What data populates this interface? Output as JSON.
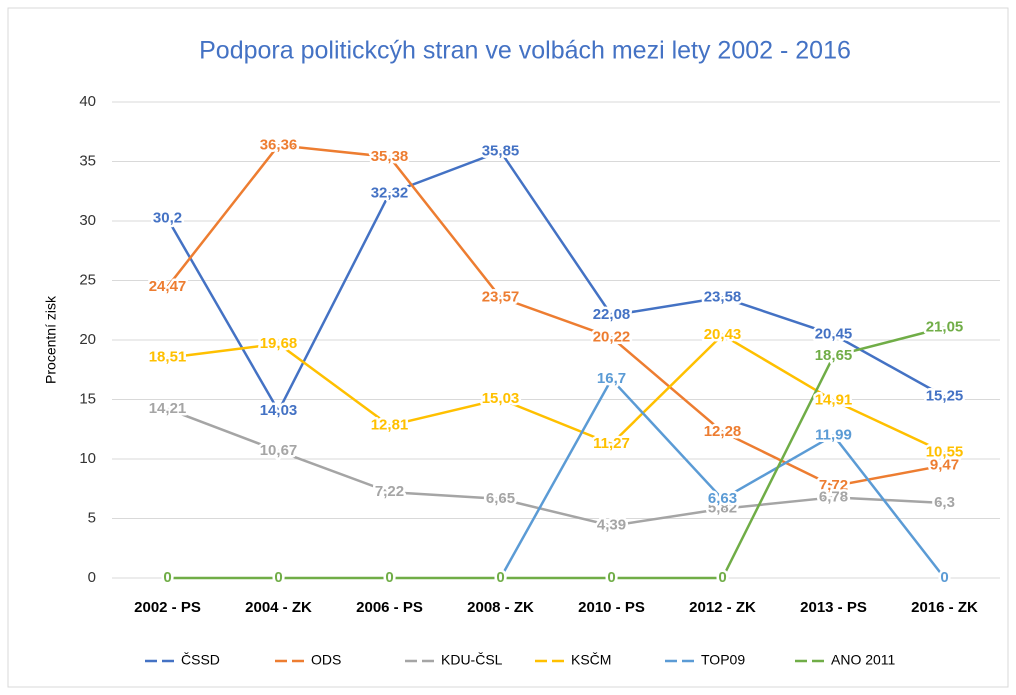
{
  "chart_data": {
    "type": "line",
    "title": "Podpora politickcýh stran ve volbách mezi lety 2002 - 2016",
    "y_label": "Procentní zisk",
    "categories": [
      "2002 - PS",
      "2004 - ZK",
      "2006 - PS",
      "2008 - ZK",
      "2010 - PS",
      "2012 - ZK",
      "2013 - PS",
      "2016 - ZK"
    ],
    "series": [
      {
        "name": "ČSSD",
        "color": "#4472c4",
        "values": [
          30.2,
          14.03,
          32.32,
          35.85,
          22.08,
          23.58,
          20.45,
          15.25
        ],
        "value_labels": [
          "30,2",
          "14,03",
          "32,32",
          "35,85",
          "22,08",
          "23,58",
          "20,45",
          "15,25"
        ]
      },
      {
        "name": "ODS",
        "color": "#ed7d31",
        "values": [
          24.47,
          36.36,
          35.38,
          23.57,
          20.22,
          12.28,
          7.72,
          9.47
        ],
        "value_labels": [
          "24,47",
          "36,36",
          "35,38",
          "23,57",
          "20,22",
          "12,28",
          "7,72",
          "9,47"
        ]
      },
      {
        "name": "KDU-ČSL",
        "color": "#a5a5a5",
        "values": [
          14.21,
          10.67,
          7.22,
          6.65,
          4.39,
          5.82,
          6.78,
          6.3
        ],
        "value_labels": [
          "14,21",
          "10,67",
          "7,22",
          "6,65",
          "4,39",
          "5,82",
          "6,78",
          "6,3"
        ]
      },
      {
        "name": "KSČM",
        "color": "#ffc000",
        "values": [
          18.51,
          19.68,
          12.81,
          15.03,
          11.27,
          20.43,
          14.91,
          10.55
        ],
        "value_labels": [
          "18,51",
          "19,68",
          "12,81",
          "15,03",
          "11,27",
          "20,43",
          "14,91",
          "10,55"
        ]
      },
      {
        "name": "TOP09",
        "color": "#5b9bd5",
        "values": [
          null,
          null,
          null,
          0,
          16.7,
          6.63,
          11.99,
          0
        ],
        "value_labels": [
          null,
          null,
          null,
          "0",
          "16,7",
          "6,63",
          "11,99",
          "0"
        ]
      },
      {
        "name": "ANO 2011",
        "color": "#70ad47",
        "values": [
          0,
          0,
          0,
          0,
          0,
          0,
          18.65,
          21.05
        ],
        "value_labels": [
          "0",
          "0",
          "0",
          "0",
          "0",
          "0",
          "18,65",
          "21,05"
        ]
      }
    ],
    "ylim": [
      0,
      40
    ],
    "yticks": [
      0,
      5,
      10,
      15,
      20,
      25,
      30,
      35,
      40
    ],
    "grid": true,
    "legend": "bottom"
  }
}
